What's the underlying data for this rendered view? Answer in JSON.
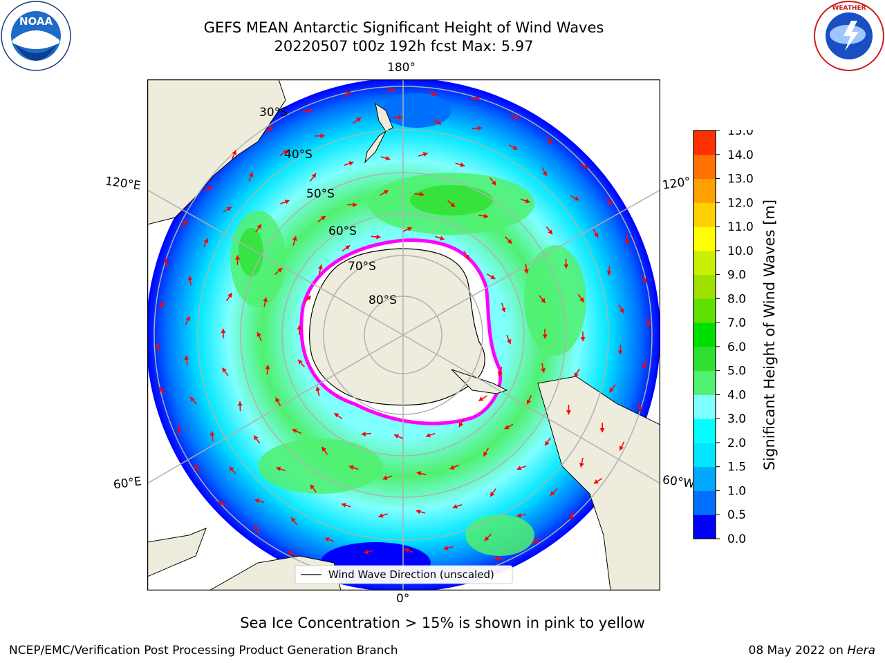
{
  "header": {
    "title_line1": "GEFS MEAN Antarctic Significant Height of Wind Waves",
    "title_line2": "20220507 t00z 192h fcst   Max: 5.97"
  },
  "logos": {
    "left": {
      "text": "NOAA",
      "ring_text": "NATIONAL OCEANIC AND ATMOSPHERIC ADMINISTRATION · U.S. DEPARTMENT OF COMMERCE"
    },
    "right": {
      "ring_text": "NATIONAL WEATHER SERVICE"
    }
  },
  "map": {
    "longitude_labels": {
      "top": "180°",
      "bottom": "0°",
      "upper_left": "120°E",
      "upper_right": "120°",
      "lower_left": "60°E",
      "lower_right": "60°W"
    },
    "latitude_labels": [
      "30°S",
      "40°S",
      "50°S",
      "60°S",
      "70°S",
      "80°S"
    ],
    "legend_label": "Wind Wave Direction (unscaled)",
    "colors": {
      "land": "#eeecdc",
      "ocean_edge": "#ffffff",
      "arrow": "#ff0000",
      "sea_ice_edge": "#ff00ff",
      "antarctica": "#ffffff"
    }
  },
  "colorbar": {
    "label": "Significant Height of Wind Waves [m]",
    "ticks": [
      "0.0",
      "0.5",
      "1.0",
      "1.5",
      "2.0",
      "3.0",
      "4.0",
      "5.0",
      "6.0",
      "7.0",
      "8.0",
      "9.0",
      "10.0",
      "11.0",
      "12.0",
      "13.0",
      "14.0",
      "15.0"
    ],
    "colors": [
      "#0000ff",
      "#0070ff",
      "#00a8ff",
      "#00e6ff",
      "#00ffff",
      "#80ffff",
      "#50f070",
      "#30e030",
      "#00e000",
      "#60e000",
      "#a0e000",
      "#c8f000",
      "#ffff00",
      "#ffd000",
      "#ffa000",
      "#ff7000",
      "#ff3000",
      "#ff0000"
    ]
  },
  "footer": {
    "sea_ice_note": "Sea Ice Concentration > 15% is shown in pink to yellow",
    "credit": "NCEP/EMC/Verification Post Processing Product Generation Branch",
    "date": "08 May 2022 on",
    "machine": "Hera"
  }
}
